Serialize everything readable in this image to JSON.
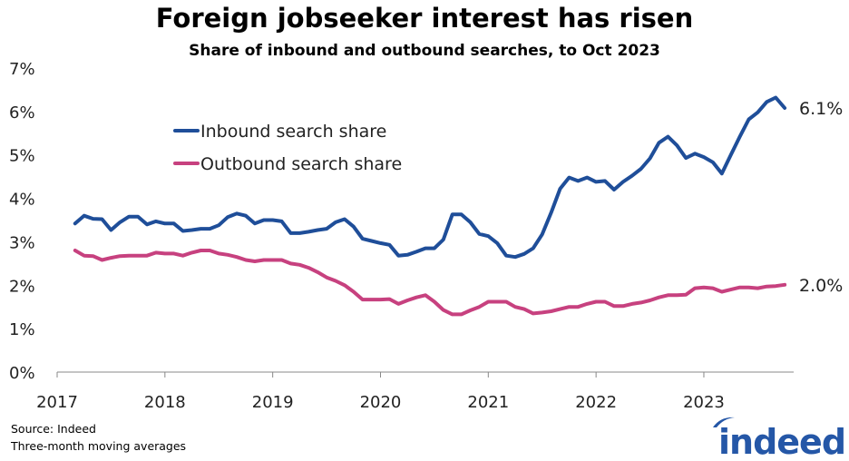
{
  "title": "Foreign jobseeker interest has risen",
  "subtitle": "Share of inbound and outbound searches, to Oct 2023",
  "source": "Source: Indeed",
  "note": "Three-month moving averages",
  "logo_text": "indeed",
  "colors": {
    "inbound": "#1f4e99",
    "outbound": "#c7417f",
    "axis": "#888888",
    "logo": "#2557a7"
  },
  "chart_data": {
    "type": "line",
    "title": "Foreign jobseeker interest has risen",
    "subtitle": "Share of inbound and outbound searches, to Oct 2023",
    "xlim": [
      "2017-01",
      "2023-11"
    ],
    "ylim": [
      0,
      7
    ],
    "y_ticks": [
      "0%",
      "1%",
      "2%",
      "3%",
      "4%",
      "5%",
      "6%",
      "7%"
    ],
    "x_ticks": [
      "2017",
      "2018",
      "2019",
      "2020",
      "2021",
      "2022",
      "2023"
    ],
    "grid": false,
    "legend_position": "top-left",
    "x": [
      "2017-03",
      "2017-04",
      "2017-05",
      "2017-06",
      "2017-07",
      "2017-08",
      "2017-09",
      "2017-10",
      "2017-11",
      "2017-12",
      "2018-01",
      "2018-02",
      "2018-03",
      "2018-04",
      "2018-05",
      "2018-06",
      "2018-07",
      "2018-08",
      "2018-09",
      "2018-10",
      "2018-11",
      "2018-12",
      "2019-01",
      "2019-02",
      "2019-03",
      "2019-04",
      "2019-05",
      "2019-06",
      "2019-07",
      "2019-08",
      "2019-09",
      "2019-10",
      "2019-11",
      "2019-12",
      "2020-01",
      "2020-02",
      "2020-03",
      "2020-04",
      "2020-05",
      "2020-06",
      "2020-07",
      "2020-08",
      "2020-09",
      "2020-10",
      "2020-11",
      "2020-12",
      "2021-01",
      "2021-02",
      "2021-03",
      "2021-04",
      "2021-05",
      "2021-06",
      "2021-07",
      "2021-08",
      "2021-09",
      "2021-10",
      "2021-11",
      "2021-12",
      "2022-01",
      "2022-02",
      "2022-03",
      "2022-04",
      "2022-05",
      "2022-06",
      "2022-07",
      "2022-08",
      "2022-09",
      "2022-10",
      "2022-11",
      "2022-12",
      "2023-01",
      "2023-02",
      "2023-03",
      "2023-04",
      "2023-05",
      "2023-06",
      "2023-07",
      "2023-08",
      "2023-09",
      "2023-10"
    ],
    "series": [
      {
        "name": "Inbound search share",
        "end_label": "6.1%",
        "values": [
          3.42,
          3.6,
          3.53,
          3.52,
          3.27,
          3.45,
          3.58,
          3.58,
          3.4,
          3.47,
          3.42,
          3.42,
          3.25,
          3.27,
          3.3,
          3.3,
          3.38,
          3.57,
          3.65,
          3.6,
          3.42,
          3.5,
          3.5,
          3.47,
          3.2,
          3.2,
          3.23,
          3.27,
          3.3,
          3.45,
          3.52,
          3.35,
          3.07,
          3.02,
          2.97,
          2.93,
          2.68,
          2.7,
          2.77,
          2.85,
          2.85,
          3.05,
          3.63,
          3.63,
          3.45,
          3.18,
          3.13,
          2.97,
          2.68,
          2.65,
          2.72,
          2.85,
          3.17,
          3.67,
          4.22,
          4.48,
          4.4,
          4.48,
          4.38,
          4.4,
          4.2,
          4.38,
          4.52,
          4.68,
          4.92,
          5.28,
          5.42,
          5.22,
          4.93,
          5.03,
          4.95,
          4.83,
          4.57,
          5.0,
          5.42,
          5.82,
          5.98,
          6.22,
          6.32,
          6.08
        ]
      },
      {
        "name": "Outbound search share",
        "end_label": "2.0%",
        "values": [
          2.8,
          2.68,
          2.67,
          2.58,
          2.63,
          2.67,
          2.68,
          2.68,
          2.68,
          2.75,
          2.73,
          2.73,
          2.68,
          2.75,
          2.8,
          2.8,
          2.73,
          2.7,
          2.65,
          2.58,
          2.55,
          2.58,
          2.58,
          2.58,
          2.5,
          2.47,
          2.4,
          2.3,
          2.18,
          2.1,
          2.0,
          1.85,
          1.67,
          1.67,
          1.67,
          1.68,
          1.57,
          1.65,
          1.72,
          1.77,
          1.62,
          1.43,
          1.33,
          1.33,
          1.42,
          1.5,
          1.62,
          1.62,
          1.62,
          1.5,
          1.45,
          1.35,
          1.37,
          1.4,
          1.45,
          1.5,
          1.5,
          1.57,
          1.62,
          1.62,
          1.52,
          1.52,
          1.57,
          1.6,
          1.65,
          1.72,
          1.77,
          1.77,
          1.78,
          1.93,
          1.95,
          1.93,
          1.85,
          1.9,
          1.95,
          1.95,
          1.93,
          1.97,
          1.98,
          2.01
        ]
      }
    ]
  }
}
